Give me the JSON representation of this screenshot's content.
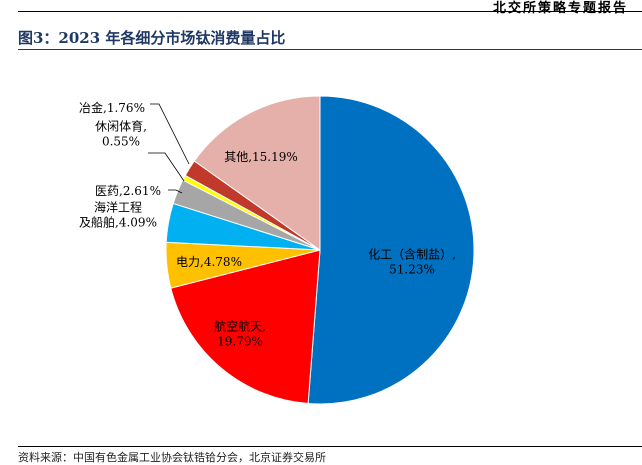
{
  "header": {
    "brand": "北交所策略专题报告"
  },
  "figure": {
    "title": "图3：2023 年各细分市场钛消费量占比",
    "source_note": "资料来源：中国有色金属工业协会钛锆铪分会，北京证券交易所"
  },
  "chart_data": {
    "type": "pie",
    "title": "图3：2023 年各细分市场钛消费量占比",
    "unit": "%",
    "slices": [
      {
        "label": "化工（含制盐）",
        "value": 51.23,
        "value_text": "51.23%",
        "color": "#0070c0"
      },
      {
        "label": "航空航天",
        "value": 19.79,
        "value_text": "19.79%",
        "color": "#ff0000"
      },
      {
        "label": "电力",
        "value": 4.78,
        "value_text": "4.78%",
        "color": "#ffc000"
      },
      {
        "label": "海洋工程及船舶",
        "value": 4.09,
        "value_text": "4.09%",
        "color": "#00b0f0"
      },
      {
        "label": "医药",
        "value": 2.61,
        "value_text": "2.61%",
        "color": "#a6a6a6"
      },
      {
        "label": "休闲体育",
        "value": 0.55,
        "value_text": "0.55%",
        "color": "#ffff00"
      },
      {
        "label": "冶金",
        "value": 1.76,
        "value_text": "1.76%",
        "color": "#c0392b"
      },
      {
        "label": "其他",
        "value": 15.19,
        "value_text": "15.19%",
        "color": "#e6b0aa"
      }
    ],
    "legend": "none",
    "data_labels": "category, value"
  }
}
